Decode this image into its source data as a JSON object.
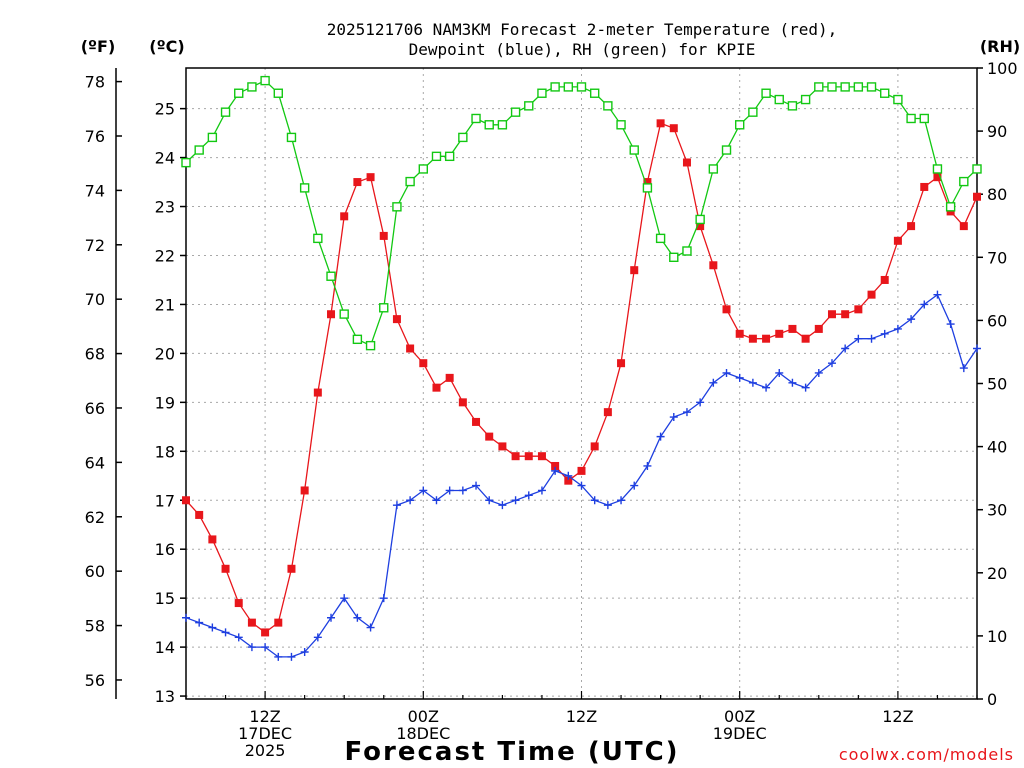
{
  "title_line1": "2025121706 NAM3KM Forecast 2-meter Temperature (red),",
  "title_line2": "Dewpoint (blue), RH (green) for KPIE",
  "unit_f": "(ºF)",
  "unit_c": "(ºC)",
  "unit_rh": "(RH)",
  "xlabel": "Forecast Time (UTC)",
  "watermark": "coolwx.com/models",
  "colors": {
    "temperature": "#e8161b",
    "dewpoint": "#1e3fe0",
    "rh": "#12c812",
    "grid": "#a8a8a8"
  },
  "chart_data": {
    "type": "line",
    "grid": true,
    "x_hours_start": 6,
    "x_hours_end": 66,
    "x_ticks": [
      {
        "hour": 12,
        "lines": [
          "12Z",
          "17DEC",
          "2025"
        ]
      },
      {
        "hour": 24,
        "lines": [
          "00Z",
          "18DEC"
        ]
      },
      {
        "hour": 36,
        "lines": [
          "12Z"
        ]
      },
      {
        "hour": 48,
        "lines": [
          "00Z",
          "19DEC"
        ]
      },
      {
        "hour": 60,
        "lines": [
          "12Z"
        ]
      }
    ],
    "y_left_f": {
      "range": [
        55.3,
        78.5
      ],
      "ticks": [
        56,
        58,
        60,
        62,
        64,
        66,
        68,
        70,
        72,
        74,
        76,
        78
      ]
    },
    "y_left_c": {
      "range": [
        12.94,
        25.83
      ],
      "ticks": [
        13,
        14,
        15,
        16,
        17,
        18,
        19,
        20,
        21,
        22,
        23,
        24,
        25
      ]
    },
    "y_right_rh": {
      "range": [
        0,
        100
      ],
      "ticks": [
        0,
        10,
        20,
        30,
        40,
        50,
        60,
        70,
        80,
        90,
        100
      ]
    },
    "series": [
      {
        "name": "Temperature",
        "axis": "c",
        "marker": "filled-square",
        "x": [
          6,
          7,
          8,
          9,
          10,
          11,
          12,
          13,
          14,
          15,
          16,
          17,
          18,
          19,
          20,
          21,
          22,
          23,
          24,
          25,
          26,
          27,
          28,
          29,
          30,
          31,
          32,
          33,
          34,
          35,
          36,
          37,
          38,
          39,
          40,
          41,
          42,
          43,
          44,
          45,
          46,
          47,
          48,
          49,
          50,
          51,
          52,
          53,
          54,
          55,
          56,
          57,
          58,
          59,
          60,
          61,
          62,
          63,
          64,
          65,
          66
        ],
        "y": [
          17.0,
          16.7,
          16.2,
          15.6,
          14.9,
          14.5,
          14.3,
          14.5,
          15.6,
          17.2,
          19.2,
          20.8,
          22.8,
          23.5,
          23.6,
          22.4,
          20.7,
          20.1,
          19.8,
          19.3,
          19.5,
          19.0,
          18.6,
          18.3,
          18.1,
          17.9,
          17.9,
          17.9,
          17.7,
          17.4,
          17.6,
          18.1,
          18.8,
          19.8,
          21.7,
          23.5,
          24.7,
          24.6,
          23.9,
          22.6,
          21.8,
          20.9,
          20.4,
          20.3,
          20.3,
          20.4,
          20.5,
          20.3,
          20.5,
          20.8,
          20.8,
          20.9,
          21.2,
          21.5,
          22.3,
          22.6,
          23.4,
          23.6,
          22.9,
          22.6,
          23.2
        ]
      },
      {
        "name": "Dewpoint",
        "axis": "c",
        "marker": "plus",
        "x": [
          6,
          7,
          8,
          9,
          10,
          11,
          12,
          13,
          14,
          15,
          16,
          17,
          18,
          19,
          20,
          21,
          22,
          23,
          24,
          25,
          26,
          27,
          28,
          29,
          30,
          31,
          32,
          33,
          34,
          35,
          36,
          37,
          38,
          39,
          40,
          41,
          42,
          43,
          44,
          45,
          46,
          47,
          48,
          49,
          50,
          51,
          52,
          53,
          54,
          55,
          56,
          57,
          58,
          59,
          60,
          61,
          62,
          63,
          64,
          65,
          66
        ],
        "y": [
          14.6,
          14.5,
          14.4,
          14.3,
          14.2,
          14.0,
          14.0,
          13.8,
          13.8,
          13.9,
          14.2,
          14.6,
          15.0,
          14.6,
          14.4,
          15.0,
          16.9,
          17.0,
          17.2,
          17.0,
          17.2,
          17.2,
          17.3,
          17.0,
          16.9,
          17.0,
          17.1,
          17.2,
          17.6,
          17.5,
          17.3,
          17.0,
          16.9,
          17.0,
          17.3,
          17.7,
          18.3,
          18.7,
          18.8,
          19.0,
          19.4,
          19.6,
          19.5,
          19.4,
          19.3,
          19.6,
          19.4,
          19.3,
          19.6,
          19.8,
          20.1,
          20.3,
          20.3,
          20.4,
          20.5,
          20.7,
          21.0,
          21.2,
          20.6,
          19.7,
          20.1
        ]
      },
      {
        "name": "RH",
        "axis": "rh",
        "marker": "open-square",
        "x": [
          6,
          7,
          8,
          9,
          10,
          11,
          12,
          13,
          14,
          15,
          16,
          17,
          18,
          19,
          20,
          21,
          22,
          23,
          24,
          25,
          26,
          27,
          28,
          29,
          30,
          31,
          32,
          33,
          34,
          35,
          36,
          37,
          38,
          39,
          40,
          41,
          42,
          43,
          44,
          45,
          46,
          47,
          48,
          49,
          50,
          51,
          52,
          53,
          54,
          55,
          56,
          57,
          58,
          59,
          60,
          61,
          62,
          63,
          64,
          65,
          66
        ],
        "y": [
          85,
          87,
          89,
          93,
          96,
          97,
          98,
          96,
          89,
          81,
          73,
          67,
          61,
          57,
          56,
          62,
          78,
          82,
          84,
          86,
          86,
          89,
          92,
          91,
          91,
          93,
          94,
          96,
          97,
          97,
          97,
          96,
          94,
          91,
          87,
          81,
          73,
          70,
          71,
          76,
          84,
          87,
          91,
          93,
          96,
          95,
          94,
          95,
          97,
          97,
          97,
          97,
          97,
          96,
          95,
          92,
          92,
          84,
          78,
          82,
          84
        ]
      }
    ]
  }
}
